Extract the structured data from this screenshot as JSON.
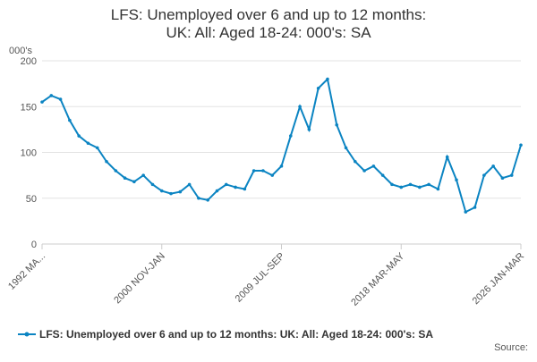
{
  "chart_data": {
    "type": "line",
    "title": "LFS: Unemployed over 6 and up to 12 months: UK: All: Aged 18-24: 000's: SA",
    "y_label": "000's",
    "source": "Source:",
    "categories": [
      "1992 MA...",
      null,
      null,
      null,
      null,
      null,
      null,
      null,
      null,
      null,
      null,
      null,
      null,
      "2000 NOV-JAN",
      null,
      null,
      null,
      null,
      null,
      null,
      null,
      null,
      null,
      null,
      null,
      null,
      "2009 JUL-SEP",
      null,
      null,
      null,
      null,
      null,
      null,
      null,
      null,
      null,
      null,
      null,
      null,
      "2018 MAR-MAY",
      null,
      null,
      null,
      null,
      null,
      null,
      null,
      null,
      null,
      null,
      null,
      null,
      "2026 JAN-MAR"
    ],
    "series": [
      {
        "name": "LFS: Unemployed over 6 and up to 12 months: UK: All: Aged 18-24: 000's: SA",
        "color": "#0b84c2",
        "values": [
          155,
          162,
          158,
          135,
          118,
          110,
          105,
          90,
          80,
          72,
          68,
          75,
          65,
          58,
          55,
          57,
          65,
          50,
          48,
          58,
          65,
          62,
          60,
          80,
          80,
          75,
          85,
          118,
          150,
          125,
          170,
          180,
          130,
          105,
          90,
          80,
          85,
          75,
          65,
          62,
          65,
          62,
          65,
          60,
          95,
          70,
          35,
          40,
          75,
          85,
          72,
          75,
          108
        ]
      }
    ],
    "ylim": [
      0,
      200
    ],
    "yticks": [
      0,
      50,
      100,
      150,
      200
    ],
    "grid": true
  }
}
